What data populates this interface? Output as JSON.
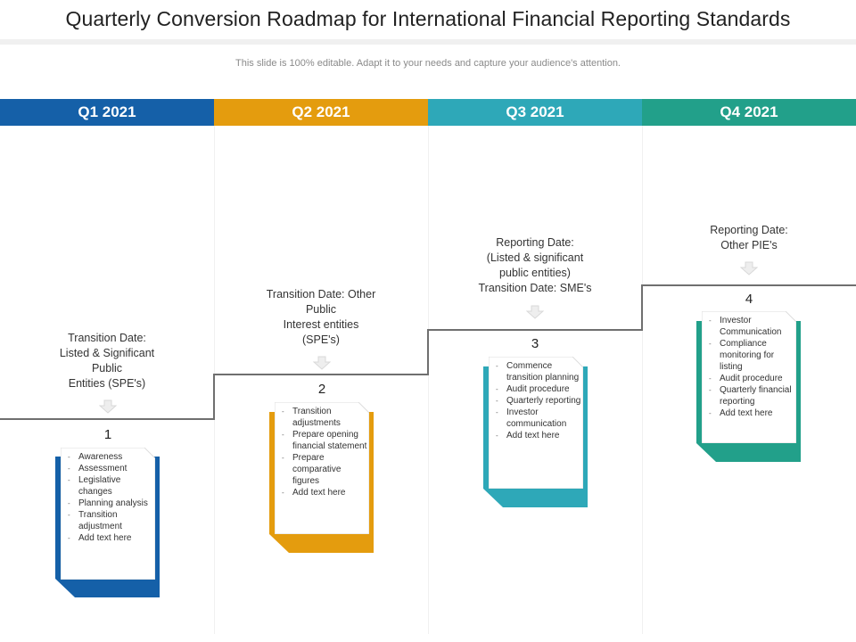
{
  "title": "Quarterly Conversion Roadmap for International Financial Reporting Standards",
  "subtitle": "This slide is 100% editable. Adapt it to your needs and capture your audience's attention.",
  "quarters": [
    {
      "label": "Q1 2021",
      "color": "#1560a8"
    },
    {
      "label": "Q2 2021",
      "color": "#e49c0e"
    },
    {
      "label": "Q3 2021",
      "color": "#2ea8b8"
    },
    {
      "label": "Q4 2021",
      "color": "#22a08a"
    }
  ],
  "steps": [
    {
      "number": "1",
      "milestone": [
        "Transition Date:",
        "Listed & Significant",
        "Public",
        "Entities (SPE's)"
      ],
      "items": [
        "Awareness",
        "Assessment",
        "Legislative changes",
        "Planning analysis",
        "Transition adjustment",
        "Add text here"
      ],
      "icon": "down-arrow-icon"
    },
    {
      "number": "2",
      "milestone": [
        "Transition Date: Other",
        "Public",
        "Interest entities",
        "(SPE's)"
      ],
      "items": [
        "Transition adjustments",
        "Prepare opening financial statement",
        "Prepare comparative figures",
        "Add text here"
      ],
      "icon": "down-arrow-icon"
    },
    {
      "number": "3",
      "milestone": [
        "Reporting Date:",
        "(Listed & significant",
        "public entities)",
        "Transition Date: SME's"
      ],
      "items": [
        "Commence transition planning",
        "Audit procedure",
        "Quarterly reporting",
        "Investor communication",
        "Add text here"
      ],
      "icon": "down-arrow-icon"
    },
    {
      "number": "4",
      "milestone": [
        "Reporting Date:",
        "Other PIE's"
      ],
      "items": [
        "Investor Communication",
        "Compliance monitoring for listing",
        "Audit procedure",
        "Quarterly financial reporting",
        "Add text here"
      ],
      "icon": "down-arrow-icon"
    }
  ]
}
